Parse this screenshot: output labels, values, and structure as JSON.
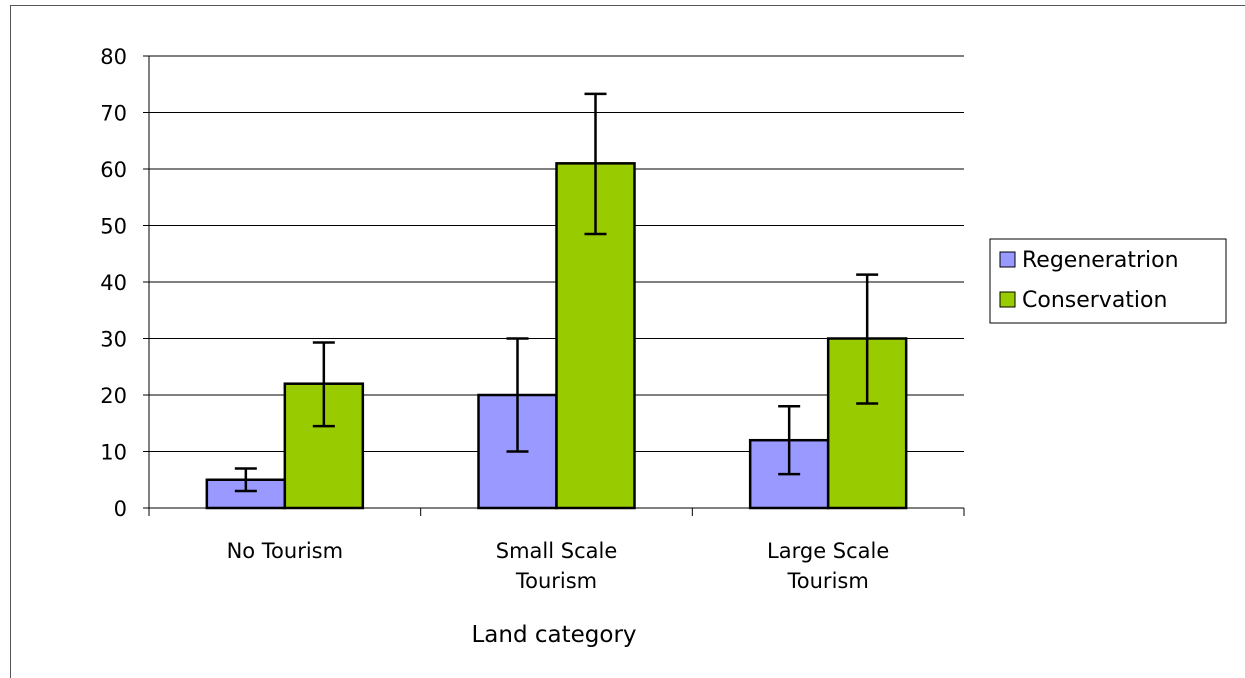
{
  "chart_data": {
    "type": "bar",
    "title": "",
    "xlabel": "Land category",
    "ylabel": "",
    "categories": [
      "No Tourism",
      "Small Scale Tourism",
      "Large Scale Tourism"
    ],
    "category_lines": [
      [
        "No Tourism"
      ],
      [
        "Small Scale",
        "Tourism"
      ],
      [
        "Large Scale",
        "Tourism"
      ]
    ],
    "series": [
      {
        "name": "Regeneratrion",
        "color": "#9999ff",
        "values": [
          5,
          20,
          12
        ],
        "error_low": [
          3,
          10,
          6
        ],
        "error_high": [
          7,
          30,
          18
        ]
      },
      {
        "name": "Conservation",
        "color": "#99cc00",
        "values": [
          22,
          61,
          30
        ],
        "error_low": [
          14.5,
          48.5,
          18.5
        ],
        "error_high": [
          29.3,
          73.3,
          41.3
        ]
      }
    ],
    "ylim": [
      0,
      80
    ],
    "yticks": [
      0,
      10,
      20,
      30,
      40,
      50,
      60,
      70,
      80
    ],
    "grid": true,
    "legend_position": "right"
  }
}
